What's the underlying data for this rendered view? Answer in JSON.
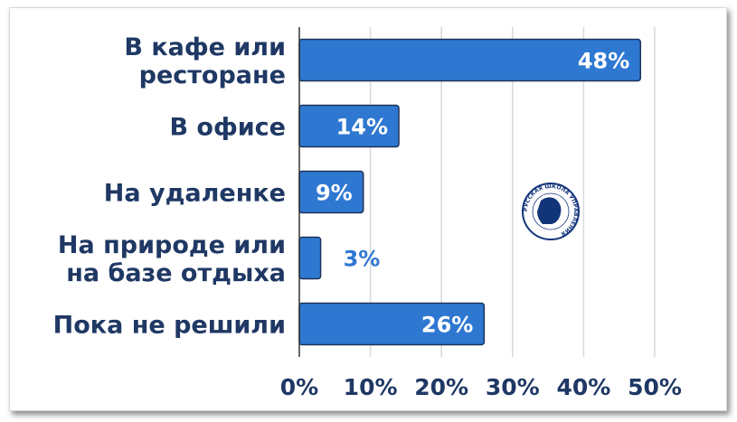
{
  "chart_data": {
    "type": "bar",
    "orientation": "horizontal",
    "categories": [
      [
        "В кафе или",
        "ресторане"
      ],
      [
        "В офисе"
      ],
      [
        "На удаленке"
      ],
      [
        "На природе или",
        "на базе отдыха"
      ],
      [
        "Пока не решили"
      ]
    ],
    "values": [
      48,
      14,
      9,
      3,
      26
    ],
    "data_labels": [
      "48%",
      "14%",
      "9%",
      "3%",
      "26%"
    ],
    "xlim": [
      0,
      50
    ],
    "xticks": [
      "0%",
      "10%",
      "20%",
      "30%",
      "40%",
      "50%"
    ],
    "grid": "vertical",
    "colors": {
      "bar": "#2f78d2",
      "bar_border": "#1c3458",
      "text": "#1f3864",
      "outside_label": "#2f78d2",
      "grid": "#d9d9d9"
    }
  },
  "logo": {
    "text": "РУССКАЯ ШКОЛА УПРАВЛЕНИЯ",
    "color": "#12357a"
  }
}
